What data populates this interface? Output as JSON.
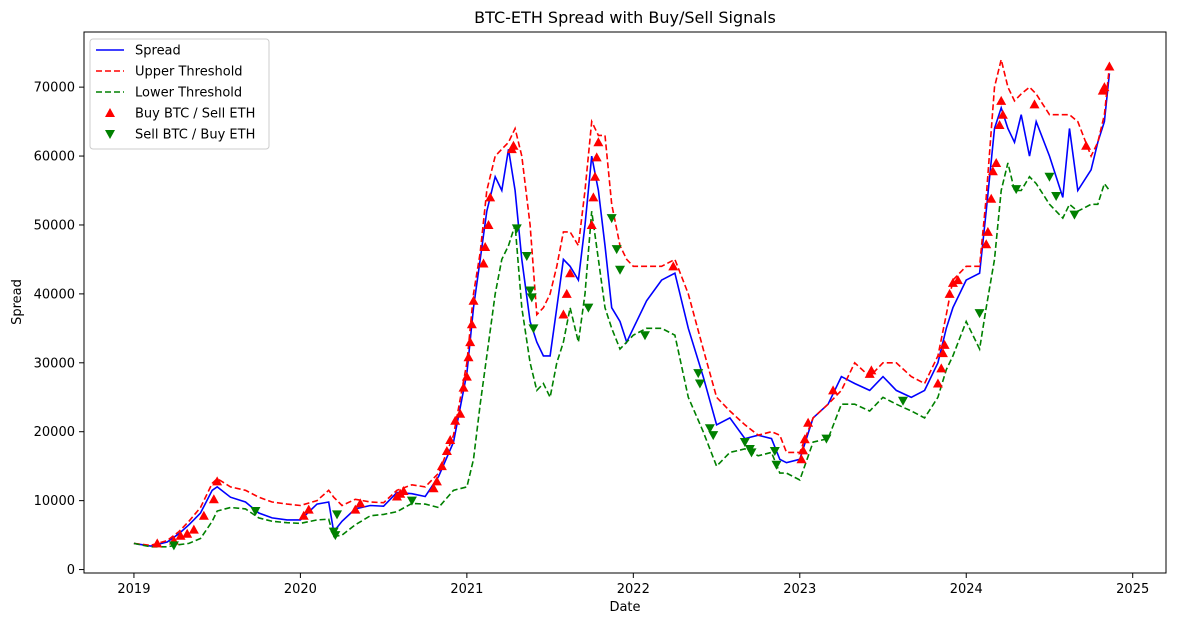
{
  "chart_data": {
    "type": "line",
    "title": "BTC-ETH Spread with Buy/Sell Signals",
    "xlabel": "Date",
    "ylabel": "Spread",
    "xlim": [
      2018.7,
      2025.2
    ],
    "ylim": [
      -500,
      78000
    ],
    "x_ticks": [
      2019,
      2020,
      2021,
      2022,
      2023,
      2024,
      2025
    ],
    "x_tick_labels": [
      "2019",
      "2020",
      "2021",
      "2022",
      "2023",
      "2024",
      "2025"
    ],
    "y_ticks": [
      0,
      10000,
      20000,
      30000,
      40000,
      50000,
      60000,
      70000
    ],
    "y_tick_labels": [
      "0",
      "10000",
      "20000",
      "30000",
      "40000",
      "50000",
      "60000",
      "70000"
    ],
    "grid": false,
    "legend_position": "upper-left",
    "colors": {
      "spread": "#0000ff",
      "upper": "#ff0000",
      "lower": "#008000",
      "buy": "#ff0000",
      "sell": "#008000"
    },
    "legend": [
      {
        "label": "Spread",
        "style": "solid-line",
        "color": "#0000ff"
      },
      {
        "label": "Upper Threshold",
        "style": "dashed-line",
        "color": "#ff0000"
      },
      {
        "label": "Lower Threshold",
        "style": "dashed-line",
        "color": "#008000"
      },
      {
        "label": "Buy BTC / Sell ETH",
        "style": "triangle-up",
        "color": "#ff0000"
      },
      {
        "label": "Sell BTC / Buy ETH",
        "style": "triangle-down",
        "color": "#008000"
      }
    ],
    "series": [
      {
        "name": "Spread",
        "x": [
          2019.0,
          2019.1,
          2019.2,
          2019.27,
          2019.33,
          2019.4,
          2019.47,
          2019.5,
          2019.58,
          2019.67,
          2019.75,
          2019.83,
          2019.92,
          2020.0,
          2020.1,
          2020.17,
          2020.2,
          2020.25,
          2020.33,
          2020.42,
          2020.5,
          2020.58,
          2020.67,
          2020.75,
          2020.83,
          2020.92,
          2021.0,
          2021.04,
          2021.08,
          2021.12,
          2021.17,
          2021.21,
          2021.25,
          2021.29,
          2021.33,
          2021.38,
          2021.42,
          2021.46,
          2021.5,
          2021.54,
          2021.58,
          2021.62,
          2021.67,
          2021.71,
          2021.75,
          2021.79,
          2021.83,
          2021.87,
          2021.92,
          2021.96,
          2022.0,
          2022.08,
          2022.17,
          2022.25,
          2022.33,
          2022.42,
          2022.5,
          2022.58,
          2022.67,
          2022.75,
          2022.83,
          2022.88,
          2022.92,
          2023.0,
          2023.08,
          2023.17,
          2023.25,
          2023.33,
          2023.42,
          2023.5,
          2023.58,
          2023.67,
          2023.75,
          2023.83,
          2023.88,
          2023.92,
          2024.0,
          2024.08,
          2024.12,
          2024.17,
          2024.21,
          2024.25,
          2024.29,
          2024.33,
          2024.38,
          2024.42,
          2024.5,
          2024.58,
          2024.62,
          2024.67,
          2024.75,
          2024.79,
          2024.83,
          2024.86
        ],
        "values": [
          3800,
          3400,
          4000,
          5200,
          6500,
          8200,
          11500,
          12000,
          10500,
          9800,
          8200,
          7500,
          7200,
          7200,
          9500,
          9800,
          5500,
          7000,
          8800,
          9300,
          9200,
          11200,
          11000,
          10600,
          13500,
          18500,
          28500,
          38000,
          45000,
          52000,
          57000,
          55000,
          61000,
          55000,
          45000,
          36000,
          33000,
          31000,
          31000,
          38000,
          45000,
          44000,
          42000,
          50000,
          60000,
          55000,
          47000,
          38000,
          36000,
          33000,
          35000,
          39000,
          42000,
          43000,
          35000,
          28000,
          21000,
          22000,
          19000,
          19500,
          19000,
          16000,
          15500,
          16000,
          22000,
          24000,
          28000,
          27000,
          26000,
          28000,
          26000,
          25000,
          26000,
          30000,
          35000,
          38000,
          42000,
          43000,
          52000,
          64000,
          67000,
          64000,
          62000,
          66000,
          60000,
          65000,
          60000,
          54000,
          64000,
          55000,
          58000,
          62000,
          65000,
          72000
        ]
      },
      {
        "name": "Upper Threshold",
        "x": [
          2019.0,
          2019.1,
          2019.2,
          2019.27,
          2019.33,
          2019.4,
          2019.47,
          2019.5,
          2019.58,
          2019.67,
          2019.75,
          2019.83,
          2019.92,
          2020.0,
          2020.1,
          2020.17,
          2020.2,
          2020.25,
          2020.33,
          2020.42,
          2020.5,
          2020.58,
          2020.67,
          2020.75,
          2020.83,
          2020.92,
          2021.0,
          2021.04,
          2021.08,
          2021.12,
          2021.17,
          2021.21,
          2021.25,
          2021.29,
          2021.33,
          2021.38,
          2021.42,
          2021.46,
          2021.5,
          2021.54,
          2021.58,
          2021.62,
          2021.67,
          2021.71,
          2021.75,
          2021.79,
          2021.83,
          2021.87,
          2021.92,
          2021.96,
          2022.0,
          2022.08,
          2022.17,
          2022.25,
          2022.33,
          2022.42,
          2022.5,
          2022.58,
          2022.67,
          2022.75,
          2022.83,
          2022.88,
          2022.92,
          2023.0,
          2023.08,
          2023.17,
          2023.25,
          2023.33,
          2023.42,
          2023.5,
          2023.58,
          2023.67,
          2023.75,
          2023.83,
          2023.88,
          2023.92,
          2024.0,
          2024.08,
          2024.12,
          2024.17,
          2024.21,
          2024.25,
          2024.29,
          2024.33,
          2024.38,
          2024.42,
          2024.5,
          2024.58,
          2024.62,
          2024.67,
          2024.75,
          2024.79,
          2024.83,
          2024.86
        ],
        "values": [
          3800,
          3500,
          4200,
          5500,
          7000,
          9000,
          12500,
          13200,
          12000,
          11500,
          10500,
          9800,
          9500,
          9300,
          10000,
          11500,
          10500,
          9300,
          10200,
          9800,
          9700,
          11500,
          12300,
          12000,
          14000,
          19500,
          30000,
          40000,
          46000,
          55000,
          60000,
          61000,
          62000,
          64000,
          60000,
          50000,
          37000,
          38000,
          40000,
          44000,
          49000,
          49000,
          47000,
          55000,
          65000,
          63000,
          63000,
          53000,
          47000,
          45000,
          44000,
          44000,
          44000,
          45000,
          40000,
          32000,
          25000,
          23000,
          21000,
          19500,
          20000,
          19500,
          17000,
          17000,
          22000,
          24000,
          26000,
          30000,
          28000,
          30000,
          30000,
          28000,
          27000,
          31000,
          37000,
          42000,
          44000,
          44000,
          54000,
          70000,
          74000,
          70000,
          68000,
          69000,
          70000,
          69000,
          66000,
          66000,
          66000,
          65000,
          60000,
          62000,
          66000,
          73000
        ]
      },
      {
        "name": "Lower Threshold",
        "x": [
          2019.0,
          2019.1,
          2019.2,
          2019.27,
          2019.33,
          2019.4,
          2019.47,
          2019.5,
          2019.58,
          2019.67,
          2019.75,
          2019.83,
          2019.92,
          2020.0,
          2020.1,
          2020.17,
          2020.2,
          2020.25,
          2020.33,
          2020.42,
          2020.5,
          2020.58,
          2020.67,
          2020.75,
          2020.83,
          2020.92,
          2021.0,
          2021.04,
          2021.08,
          2021.12,
          2021.17,
          2021.21,
          2021.25,
          2021.29,
          2021.33,
          2021.38,
          2021.42,
          2021.46,
          2021.5,
          2021.54,
          2021.58,
          2021.62,
          2021.67,
          2021.71,
          2021.75,
          2021.79,
          2021.83,
          2021.87,
          2021.92,
          2021.96,
          2022.0,
          2022.08,
          2022.17,
          2022.25,
          2022.33,
          2022.42,
          2022.5,
          2022.58,
          2022.67,
          2022.75,
          2022.83,
          2022.88,
          2022.92,
          2023.0,
          2023.08,
          2023.17,
          2023.25,
          2023.33,
          2023.42,
          2023.5,
          2023.58,
          2023.67,
          2023.75,
          2023.83,
          2023.88,
          2023.92,
          2024.0,
          2024.08,
          2024.12,
          2024.17,
          2024.21,
          2024.25,
          2024.29,
          2024.33,
          2024.38,
          2024.42,
          2024.5,
          2024.58,
          2024.62,
          2024.67,
          2024.75,
          2024.79,
          2024.83,
          2024.86
        ],
        "values": [
          3800,
          3300,
          3300,
          3600,
          3800,
          4500,
          7000,
          8500,
          9000,
          8800,
          7500,
          7000,
          6800,
          6700,
          7200,
          7300,
          4800,
          5000,
          6500,
          7800,
          8000,
          8400,
          9600,
          9500,
          9000,
          11500,
          12000,
          16000,
          24000,
          31000,
          40000,
          45000,
          47000,
          50000,
          38000,
          30000,
          26000,
          27000,
          25000,
          30000,
          33000,
          38000,
          33000,
          40000,
          52000,
          45000,
          38000,
          35000,
          32000,
          33000,
          34000,
          35000,
          35000,
          34000,
          25000,
          20000,
          15000,
          17000,
          17500,
          16500,
          17000,
          14000,
          14000,
          13000,
          18500,
          19000,
          24000,
          24000,
          23000,
          25000,
          24000,
          23000,
          22000,
          25000,
          29000,
          31000,
          36000,
          32000,
          38000,
          45000,
          55000,
          59000,
          55000,
          55000,
          57000,
          56000,
          53000,
          51000,
          53000,
          52000,
          53000,
          53000,
          56000,
          55000
        ]
      }
    ],
    "buy_signals": {
      "name": "Buy BTC / Sell ETH",
      "x": [
        2019.14,
        2019.24,
        2019.28,
        2019.32,
        2019.36,
        2019.42,
        2019.48,
        2019.5,
        2020.02,
        2020.05,
        2020.33,
        2020.36,
        2020.58,
        2020.6,
        2020.62,
        2020.8,
        2020.82,
        2020.85,
        2020.88,
        2020.9,
        2020.93,
        2020.96,
        2020.98,
        2021.0,
        2021.01,
        2021.02,
        2021.03,
        2021.04,
        2021.1,
        2021.11,
        2021.13,
        2021.14,
        2021.27,
        2021.28,
        2021.58,
        2021.6,
        2021.62,
        2021.75,
        2021.76,
        2021.77,
        2021.78,
        2021.79,
        2022.24,
        2023.01,
        2023.02,
        2023.03,
        2023.05,
        2023.2,
        2023.42,
        2023.43,
        2023.83,
        2023.85,
        2023.86,
        2023.87,
        2023.9,
        2023.92,
        2023.95,
        2024.12,
        2024.13,
        2024.15,
        2024.16,
        2024.18,
        2024.2,
        2024.21,
        2024.22,
        2024.41,
        2024.72,
        2024.82,
        2024.83,
        2024.86
      ],
      "values": [
        3800,
        4200,
        4900,
        5200,
        5800,
        7800,
        10200,
        12800,
        7800,
        8700,
        8700,
        9600,
        10600,
        11000,
        11400,
        11800,
        12800,
        15000,
        17200,
        18800,
        21600,
        22600,
        26400,
        28000,
        30800,
        33000,
        35600,
        39000,
        44400,
        46800,
        50000,
        54000,
        61000,
        61500,
        37000,
        40000,
        43000,
        50000,
        54000,
        57000,
        59800,
        62000,
        44000,
        16000,
        17300,
        18900,
        21300,
        26000,
        28400,
        28900,
        27000,
        29200,
        31400,
        32600,
        40000,
        41600,
        42000,
        47200,
        49000,
        53800,
        57800,
        59000,
        64500,
        68000,
        66000,
        67500,
        61500,
        69500,
        70000,
        73000
      ]
    },
    "sell_signals": {
      "name": "Sell BTC / Buy ETH",
      "x": [
        2019.24,
        2019.73,
        2020.2,
        2020.21,
        2020.22,
        2020.67,
        2021.3,
        2021.36,
        2021.38,
        2021.39,
        2021.4,
        2021.73,
        2021.87,
        2021.9,
        2021.92,
        2022.07,
        2022.39,
        2022.4,
        2022.46,
        2022.48,
        2022.67,
        2022.7,
        2022.71,
        2022.85,
        2022.86,
        2023.16,
        2023.62,
        2024.08,
        2024.3,
        2024.5,
        2024.54,
        2024.65
      ],
      "values": [
        3500,
        8500,
        5500,
        5000,
        8000,
        10000,
        49500,
        45500,
        40500,
        39500,
        35000,
        38000,
        51000,
        46500,
        43500,
        34000,
        28500,
        27000,
        20500,
        19500,
        18500,
        17500,
        17000,
        17200,
        15200,
        19000,
        24500,
        37200,
        55200,
        57000,
        54200,
        51500
      ]
    }
  }
}
